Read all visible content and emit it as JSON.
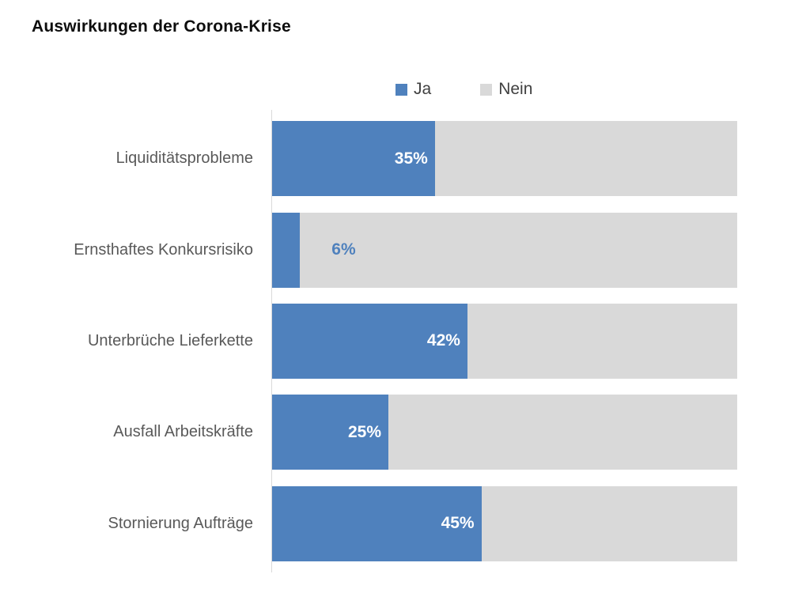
{
  "title": "Auswirkungen der Corona-Krise",
  "legend": {
    "items": [
      {
        "label": "Ja",
        "color": "#4f81bd"
      },
      {
        "label": "Nein",
        "color": "#d9d9d9"
      }
    ],
    "position": "top-center"
  },
  "colors": {
    "ja": "#4f81bd",
    "nein": "#d9d9d9",
    "category_label": "#595959",
    "legend_text": "#404040",
    "axis_line": "#d9d9d9",
    "value_label_inside": "#ffffff",
    "value_label_outside": "#4f81bd",
    "title_text": "#0d0d0d"
  },
  "chart_data": {
    "type": "bar",
    "orientation": "horizontal",
    "stacked": true,
    "title": "Auswirkungen der Corona-Krise",
    "categories": [
      "Liquiditätsprobleme",
      "Ernsthaftes Konkursrisiko",
      "Unterbrüche Lieferkette",
      "Ausfall Arbeitskräfte",
      "Stornierung Aufträge"
    ],
    "series": [
      {
        "name": "Ja",
        "color": "#4f81bd",
        "values": [
          35,
          6,
          42,
          25,
          45
        ]
      },
      {
        "name": "Nein",
        "color": "#d9d9d9",
        "values": [
          65,
          94,
          58,
          75,
          55
        ]
      }
    ],
    "value_labels": [
      "35%",
      "6%",
      "42%",
      "25%",
      "45%"
    ],
    "value_label_placement": "inside-end (outside-end when segment too small)",
    "xlabel": "",
    "ylabel": "",
    "xlim": [
      0,
      100
    ],
    "grid": false,
    "legend_position": "top"
  }
}
